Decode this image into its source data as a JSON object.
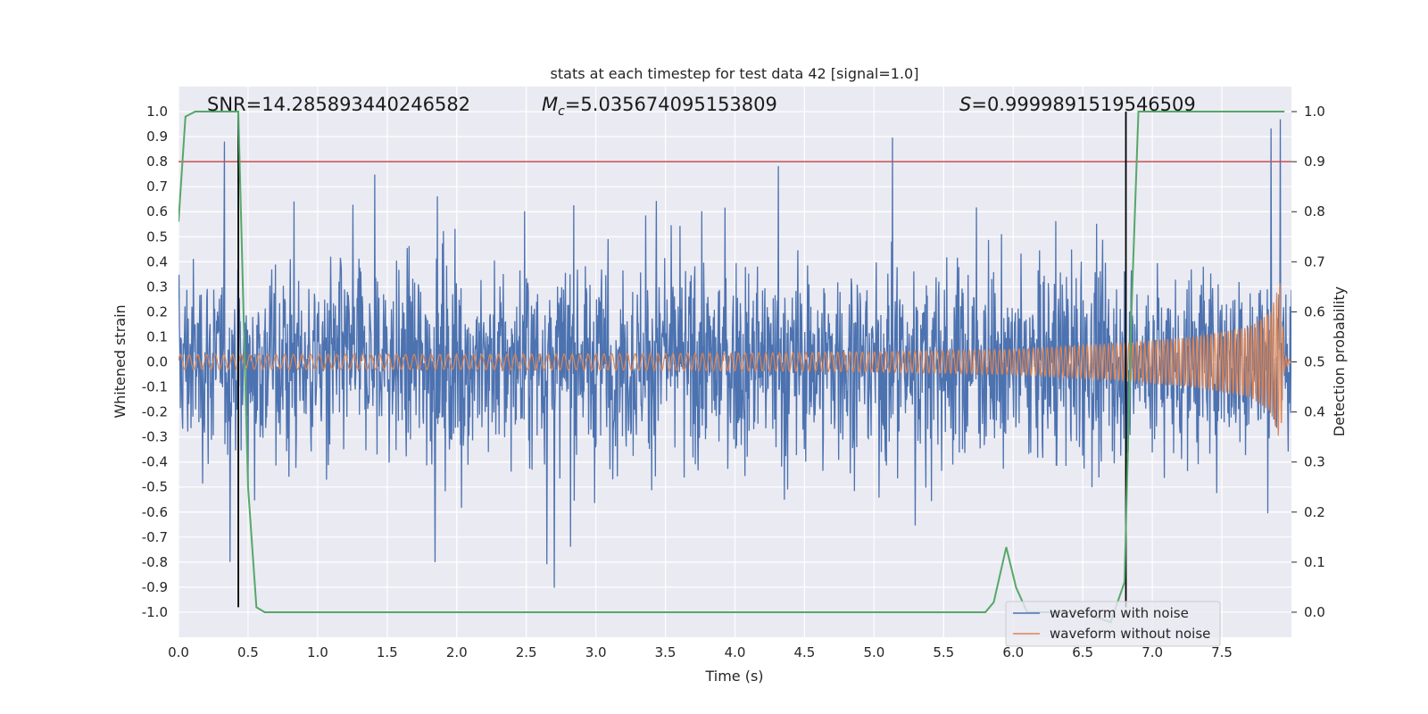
{
  "chart_data": {
    "type": "line",
    "title": "stats at each timestep for test data 42 [signal=1.0]",
    "xlabel": "Time (s)",
    "ylabel": "Whitened strain",
    "ylabel_right": "Detection probability",
    "xlim": [
      0.0,
      8.0
    ],
    "ylim": [
      -1.1,
      1.1
    ],
    "ylim_right": [
      -0.05,
      1.05
    ],
    "grid": true,
    "legend_position": "lower-right",
    "x_ticks": [
      "0.0",
      "0.5",
      "1.0",
      "1.5",
      "2.0",
      "2.5",
      "3.0",
      "3.5",
      "4.0",
      "4.5",
      "5.0",
      "5.5",
      "6.0",
      "6.5",
      "7.0",
      "7.5"
    ],
    "y_ticks": [
      "1.0",
      "0.9",
      "0.8",
      "0.7",
      "0.6",
      "0.5",
      "0.4",
      "0.3",
      "0.2",
      "0.1",
      "0.0",
      "-0.1",
      "-0.2",
      "-0.3",
      "-0.4",
      "-0.5",
      "-0.6",
      "-0.7",
      "-0.8",
      "-0.9",
      "-1.0"
    ],
    "y_ticks_right": [
      "1.0",
      "0.9",
      "0.8",
      "0.7",
      "0.6",
      "0.5",
      "0.4",
      "0.3",
      "0.2",
      "0.1",
      "0.0"
    ],
    "annotations": {
      "snr": "SNR=14.285893440246582",
      "mc_symbol": "M",
      "mc_sub": "c",
      "mc_value": "=5.035674095153809",
      "s_symbol": "S",
      "s_value": "=0.9999891519546509"
    },
    "series": [
      {
        "name": "waveform with noise",
        "color": "#4c72b0",
        "x_range": [
          0.0,
          8.0
        ],
        "envelope_y": [
          -0.78,
          0.81
        ],
        "peak_max": 1.0,
        "peak_min": -1.0
      },
      {
        "name": "waveform without noise",
        "color": "#dd8452",
        "x_range": [
          0.0,
          8.0
        ],
        "envelope": {
          "x": [
            0.0,
            1.0,
            2.0,
            3.0,
            4.0,
            5.0,
            6.0,
            6.8,
            7.3,
            7.7,
            7.85,
            7.92,
            7.95,
            8.0
          ],
          "amplitude": [
            0.03,
            0.03,
            0.03,
            0.032,
            0.035,
            0.04,
            0.05,
            0.075,
            0.1,
            0.14,
            0.2,
            0.32,
            0.03,
            0.0
          ]
        }
      },
      {
        "name": "detection probability",
        "color": "#55a868",
        "axis": "right",
        "x": [
          0.0,
          0.05,
          0.12,
          0.2,
          0.3,
          0.43,
          0.5,
          0.56,
          0.62,
          0.7,
          1.0,
          2.0,
          3.0,
          4.0,
          5.0,
          5.8,
          5.86,
          5.95,
          6.02,
          6.1,
          6.3,
          6.5,
          6.7,
          6.8,
          6.85,
          6.9,
          7.0,
          7.5,
          7.95
        ],
        "y": [
          0.78,
          0.99,
          1.0,
          1.0,
          1.0,
          1.0,
          0.25,
          0.01,
          0.0,
          0.0,
          0.0,
          0.0,
          0.0,
          0.0,
          0.0,
          0.0,
          0.02,
          0.13,
          0.05,
          0.0,
          0.0,
          0.0,
          -0.02,
          0.06,
          0.6,
          1.0,
          1.0,
          1.0,
          1.0
        ]
      }
    ],
    "reference_lines": {
      "horizontal": [
        {
          "y": 0.8,
          "color": "#c44e52"
        }
      ],
      "vertical": [
        {
          "x": 0.43,
          "color": "#000000",
          "y_range": [
            -0.98,
            1.0
          ]
        },
        {
          "x": 6.81,
          "color": "#000000",
          "y_range": [
            -0.98,
            1.0
          ]
        }
      ]
    },
    "colors": {
      "plot_background": "#eaeaf2",
      "grid": "#ffffff",
      "text": "#262626"
    }
  }
}
